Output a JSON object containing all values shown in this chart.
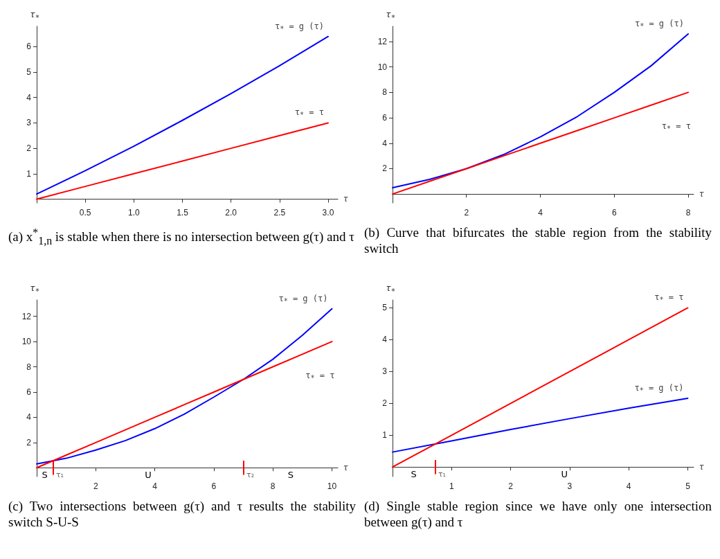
{
  "chart_data": [
    {
      "type": "line",
      "title": "(a) x$^{*}$$_{1,n}$ is stable when there is no intersection between g(τ) and τ",
      "xlabel": "τ",
      "ylabel": "τ$_{*}$",
      "x": [
        0,
        0.5,
        1,
        1.5,
        2,
        2.5,
        3
      ],
      "series": [
        {
          "name": "τ$_{*}$ = g (τ)",
          "color": "#0000ff",
          "values": [
            0.2,
            1.12,
            2.08,
            3.1,
            4.15,
            5.25,
            6.4
          ]
        },
        {
          "name": "τ$_{*}$ = τ",
          "color": "#ff0000",
          "values": [
            0,
            0.5,
            1,
            1.5,
            2,
            2.5,
            3
          ]
        }
      ],
      "xlim": [
        0,
        3.1
      ],
      "ylim": [
        -0.15,
        6.8
      ],
      "xticks": [
        0.5,
        {
          "value": 1,
          "label": "1.0"
        },
        1.5,
        {
          "value": 2,
          "label": "2.0"
        },
        2.5,
        {
          "value": 3,
          "label": "3.0"
        }
      ],
      "yticks": [
        1,
        2,
        3,
        4,
        5,
        6
      ],
      "grid": false,
      "marker": "none",
      "line_style": "solid"
    },
    {
      "type": "line",
      "title": "(b) Curve that bifurcates the stable region from the stability switch",
      "xlabel": "τ",
      "ylabel": "τ$_{*}$",
      "x": [
        0,
        1,
        2,
        3,
        4,
        5,
        6,
        7,
        8
      ],
      "series": [
        {
          "name": "τ$_{*}$ = g (τ)",
          "color": "#0000ff",
          "values": [
            0.5,
            1.15,
            2.0,
            3.1,
            4.5,
            6.1,
            8.0,
            10.1,
            12.6
          ]
        },
        {
          "name": "τ$_{*}$ = τ",
          "color": "#ff0000",
          "values": [
            0,
            1,
            2,
            3,
            4,
            5,
            6,
            7,
            8
          ]
        }
      ],
      "xlim": [
        0,
        8.15
      ],
      "ylim": [
        -0.7,
        13.2
      ],
      "xticks": [
        2,
        4,
        6,
        8
      ],
      "yticks": [
        2,
        4,
        6,
        8,
        10,
        12
      ],
      "grid": false,
      "marker": "none",
      "line_style": "solid"
    },
    {
      "type": "line",
      "title": "(c) Two intersections between g(τ) and τ results the stability switch S-U-S",
      "xlabel": "τ",
      "ylabel": "τ$_{*}$",
      "x": [
        0,
        0.55,
        1,
        2,
        3,
        4,
        5,
        6,
        7,
        8,
        9,
        10
      ],
      "series": [
        {
          "name": "τ$_{*}$ = g (τ)",
          "color": "#0000ff",
          "values": [
            0.3,
            0.55,
            0.75,
            1.4,
            2.15,
            3.1,
            4.25,
            5.6,
            7.0,
            8.6,
            10.5,
            12.6
          ]
        },
        {
          "name": "τ$_{*}$ = τ",
          "color": "#ff0000",
          "values": [
            0,
            0.55,
            1,
            2,
            3,
            4,
            5,
            6,
            7,
            8,
            9,
            10
          ]
        }
      ],
      "xlim": [
        0,
        10.2
      ],
      "ylim": [
        -0.7,
        13.3
      ],
      "xticks": [
        2,
        4,
        6,
        8,
        10
      ],
      "yticks": [
        2,
        4,
        6,
        8,
        10,
        12
      ],
      "ref_lines": [
        {
          "axis": "x",
          "value": 0.55,
          "label": "τ₁",
          "color": "#ff0000"
        },
        {
          "axis": "x",
          "value": 7.0,
          "label": "τ₂",
          "color": "#ff0000"
        }
      ],
      "annotations": [
        "S",
        "U",
        "S"
      ],
      "grid": false,
      "marker": "none",
      "line_style": "solid"
    },
    {
      "type": "line",
      "title": "(d) Single stable region since we have only one intersection between g(τ) and τ",
      "xlabel": "τ",
      "ylabel": "τ$_{*}$",
      "x": [
        0,
        1,
        2,
        3,
        4,
        5
      ],
      "series": [
        {
          "name": "τ$_{*}$ = g (τ)",
          "color": "#0000ff",
          "values": [
            0.47,
            0.82,
            1.18,
            1.52,
            1.85,
            2.16
          ]
        },
        {
          "name": "τ$_{*}$ = τ",
          "color": "#ff0000",
          "values": [
            0,
            1,
            2,
            3,
            4,
            5
          ]
        }
      ],
      "xlim": [
        0,
        5.1
      ],
      "ylim": [
        -0.3,
        5.25
      ],
      "xticks": [
        1,
        2,
        3,
        4,
        5
      ],
      "yticks": [
        1,
        2,
        3,
        4,
        5
      ],
      "ref_lines": [
        {
          "axis": "x",
          "value": 0.72,
          "label": "τ₁",
          "color": "#ff0000"
        }
      ],
      "annotations": [
        "S",
        "U"
      ],
      "grid": false,
      "marker": "none",
      "line_style": "solid"
    }
  ]
}
